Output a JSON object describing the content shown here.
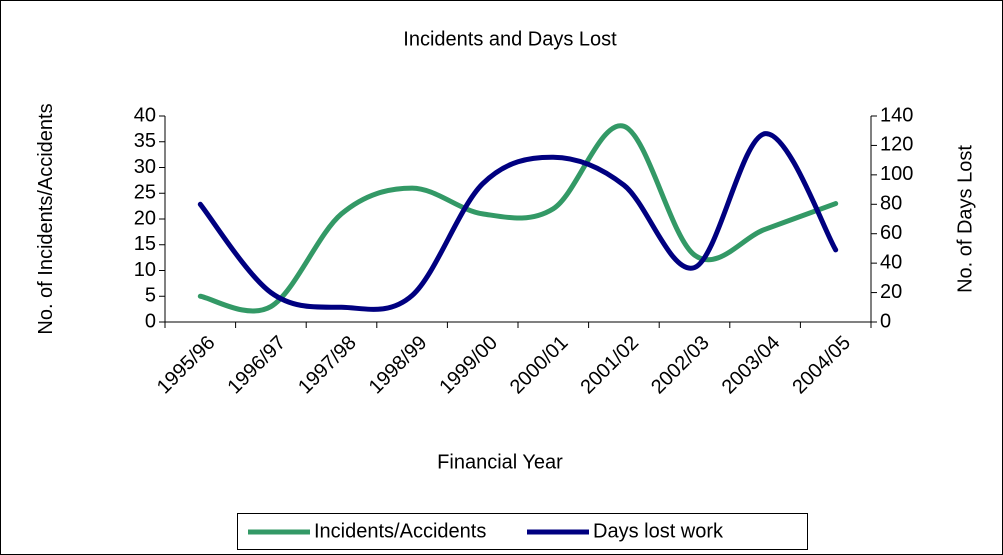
{
  "chart_data": {
    "type": "line",
    "title": "Incidents and Days Lost",
    "xlabel": "Financial Year",
    "ylabel": "No. of Incidents/Accidents",
    "y2label": "No. of Days Lost",
    "categories": [
      "1995/96",
      "1996/97",
      "1997/98",
      "1998/99",
      "1999/00",
      "2000/01",
      "2001/02",
      "2002/03",
      "2003/04",
      "2004/05"
    ],
    "series": [
      {
        "name": "Incidents/Accidents",
        "color": "#339966",
        "values": [
          5,
          3,
          21,
          26,
          21,
          22,
          38,
          13,
          18,
          23
        ]
      },
      {
        "name": "Days lost work",
        "color": "#000080",
        "axis": "y2",
        "values": [
          80,
          20,
          10,
          18,
          94,
          112,
          93,
          37,
          128,
          49
        ]
      }
    ],
    "ylim": [
      0,
      40
    ],
    "yticks": [
      0,
      5,
      10,
      15,
      20,
      25,
      30,
      35,
      40
    ],
    "y2lim": [
      0,
      140
    ],
    "y2ticks": [
      0,
      20,
      40,
      60,
      80,
      100,
      120,
      140
    ],
    "smooth": true,
    "legend": "bottom"
  }
}
